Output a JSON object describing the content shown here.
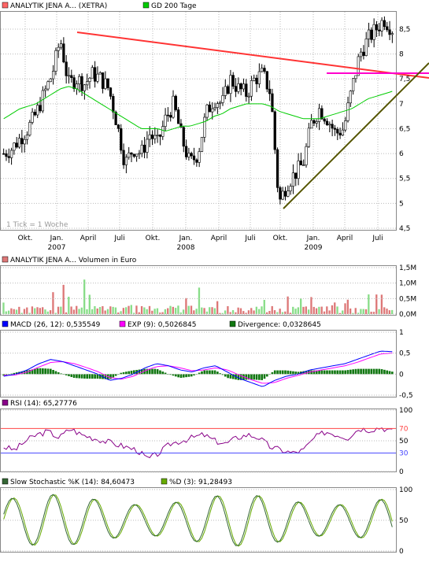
{
  "colors": {
    "up": "#ffffff",
    "down": "#000000",
    "wick": "#000000",
    "sma": "#00cc00",
    "trend_red": "#ff3333",
    "trend_magenta": "#ff00cc",
    "trend_olive": "#555500",
    "vol_up": "#88dd88",
    "vol_down": "#dd7777",
    "macd": "#0000ff",
    "exp": "#ff00ff",
    "div": "#117711",
    "rsi": "#880088",
    "rsi_hi": "#ff4444",
    "rsi_lo": "#4444ff",
    "stoch_k": "#336633",
    "stoch_d": "#66aa00",
    "grid": "#bbbbbb"
  },
  "price_panel": {
    "legend": [
      {
        "label": "ANALYTIK JENA A... (XETRA)",
        "swatch": "#ff6666"
      },
      {
        "label": "GD 200 Tage",
        "swatch": "#00cc00"
      }
    ],
    "y_ticks": [
      "8,5",
      "8",
      "7,5",
      "7",
      "6,5",
      "6",
      "5,5",
      "5",
      "4,5"
    ],
    "note": "1 Tick = 1 Woche",
    "x_months": [
      {
        "label": "Okt.",
        "year": ""
      },
      {
        "label": "Jan.",
        "year": "2007"
      },
      {
        "label": "April",
        "year": ""
      },
      {
        "label": "Juli",
        "year": ""
      },
      {
        "label": "Okt.",
        "year": ""
      },
      {
        "label": "Jan.",
        "year": "2008"
      },
      {
        "label": "April",
        "year": ""
      },
      {
        "label": "Juli",
        "year": ""
      },
      {
        "label": "Okt.",
        "year": ""
      },
      {
        "label": "Jan.",
        "year": "2009"
      },
      {
        "label": "April",
        "year": ""
      },
      {
        "label": "Juli",
        "year": ""
      }
    ]
  },
  "volume_panel": {
    "legend": "ANALYTIK JENA A... Volumen in Euro",
    "y_ticks": [
      "1,5M",
      "1,0M",
      "0,5M",
      "0,0M"
    ]
  },
  "macd_panel": {
    "legend": [
      {
        "label": "MACD (26, 12): 0,535549",
        "swatch": "#0000ff"
      },
      {
        "label": "EXP (9): 0,5026845",
        "swatch": "#ff00ff"
      },
      {
        "label": "Divergence: 0,0328645",
        "swatch": "#117711"
      }
    ],
    "y_ticks": [
      "1",
      "0,5",
      "0",
      "-0,5"
    ]
  },
  "rsi_panel": {
    "legend": "RSI (14): 65,27776",
    "y_ticks": [
      "100",
      "70",
      "50",
      "30",
      "0"
    ]
  },
  "stoch_panel": {
    "legend": [
      {
        "label": "Slow Stochastic %K (14): 84,60473",
        "swatch": "#336633"
      },
      {
        "label": "%D (3): 91,28493",
        "swatch": "#66aa00"
      }
    ],
    "y_ticks": [
      "100",
      "50",
      "0"
    ]
  },
  "chart_data": [
    {
      "type": "candlestick",
      "title": "ANALYTIK JENA A... (XETRA)",
      "x_range": [
        "2006-09",
        "2009-08"
      ],
      "ylim": [
        4.5,
        8.8
      ],
      "series": [
        {
          "name": "ANALYTIK JENA A... (XETRA)",
          "values": [
            6.0,
            6.1,
            6.3,
            6.5,
            6.8,
            7.2,
            7.6,
            8.3,
            7.4,
            7.5,
            7.4,
            7.6,
            7.5,
            7.3,
            6.6,
            5.8,
            6.1,
            6.0,
            6.4,
            6.2,
            6.7,
            7.0,
            6.3,
            5.8,
            6.0,
            6.8,
            7.1,
            7.0,
            7.5,
            7.3,
            7.2,
            7.5,
            7.6,
            7.2,
            5.0,
            5.4,
            5.6,
            5.8,
            6.6,
            6.9,
            6.7,
            6.4,
            6.5,
            7.3,
            8.0,
            8.3,
            8.5,
            8.7,
            8.5
          ]
        },
        {
          "name": "GD 200 Tage",
          "values": [
            6.7,
            6.8,
            6.9,
            6.95,
            7.0,
            7.1,
            7.2,
            7.3,
            7.35,
            7.3,
            7.2,
            7.1,
            7.0,
            6.9,
            6.8,
            6.7,
            6.6,
            6.5,
            6.5,
            6.5,
            6.45,
            6.5,
            6.55,
            6.55,
            6.6,
            6.65,
            6.75,
            6.8,
            6.9,
            6.95,
            7.0,
            7.0,
            7.0,
            6.95,
            6.85,
            6.8,
            6.75,
            6.7,
            6.7,
            6.7,
            6.75,
            6.8,
            6.85,
            6.9,
            7.0,
            7.1,
            7.15,
            7.2,
            7.25
          ]
        }
      ]
    },
    {
      "type": "bar",
      "title": "ANALYTIK JENA A... Volumen in Euro",
      "ylim": [
        0,
        1.5
      ]
    },
    {
      "type": "line",
      "title": "MACD",
      "series": [
        {
          "name": "MACD (26, 12)",
          "last": 0.535549
        },
        {
          "name": "EXP (9)",
          "last": 0.5026845
        },
        {
          "name": "Divergence",
          "last": 0.0328645
        }
      ],
      "ylim": [
        -0.5,
        1
      ]
    },
    {
      "type": "line",
      "title": "RSI (14)",
      "series": [
        {
          "name": "RSI (14)",
          "last": 65.27776
        }
      ],
      "ylim": [
        0,
        100
      ]
    },
    {
      "type": "line",
      "title": "Slow Stochastic",
      "series": [
        {
          "name": "Slow Stochastic %K (14)",
          "last": 84.60473
        },
        {
          "name": "%D (3)",
          "last": 91.28493
        }
      ],
      "ylim": [
        0,
        100
      ]
    }
  ]
}
